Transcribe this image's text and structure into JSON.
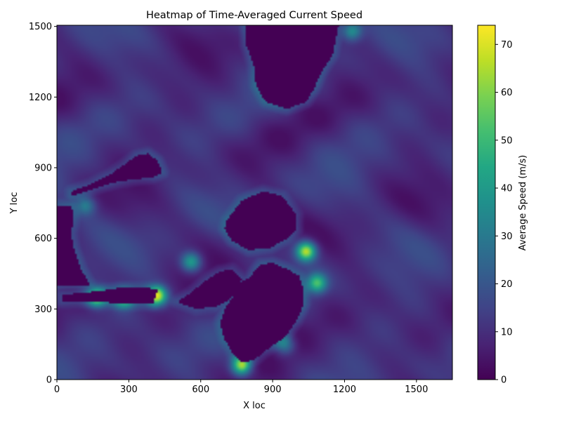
{
  "chart_data": {
    "type": "heatmap",
    "title": "Heatmap of Time-Averaged Current Speed",
    "xlabel": "X loc",
    "ylabel": "Y loc",
    "xlim": [
      0,
      1650
    ],
    "ylim": [
      0,
      1505
    ],
    "x_ticks": [
      0,
      300,
      600,
      900,
      1200,
      1500
    ],
    "y_ticks": [
      0,
      300,
      600,
      900,
      1200,
      1500
    ],
    "colormap": "viridis",
    "colorbar": {
      "label": "Average Speed (m/s)",
      "range": [
        0,
        74
      ],
      "ticks": [
        0,
        10,
        20,
        30,
        40,
        50,
        60,
        70
      ]
    },
    "land_value": 0,
    "background_speed_range": [
      3,
      18
    ],
    "hotspots": [
      {
        "x": 420,
        "y": 355,
        "speed": 72
      },
      {
        "x": 1040,
        "y": 545,
        "speed": 74
      },
      {
        "x": 770,
        "y": 60,
        "speed": 70
      },
      {
        "x": 165,
        "y": 350,
        "speed": 62
      },
      {
        "x": 280,
        "y": 345,
        "speed": 52
      },
      {
        "x": 1085,
        "y": 410,
        "speed": 58
      },
      {
        "x": 560,
        "y": 500,
        "speed": 50
      },
      {
        "x": 1230,
        "y": 1480,
        "speed": 45
      },
      {
        "x": 950,
        "y": 150,
        "speed": 42
      },
      {
        "x": 120,
        "y": 740,
        "speed": 38
      }
    ],
    "land_masses": [
      {
        "name": "north-island",
        "outline": [
          [
            790,
            1505
          ],
          [
            1175,
            1505
          ],
          [
            1150,
            1380
          ],
          [
            1100,
            1300
          ],
          [
            1070,
            1230
          ],
          [
            1040,
            1180
          ],
          [
            960,
            1150
          ],
          [
            870,
            1180
          ],
          [
            830,
            1250
          ],
          [
            820,
            1340
          ],
          [
            790,
            1420
          ]
        ]
      },
      {
        "name": "south-island",
        "outline": [
          [
            800,
            430
          ],
          [
            850,
            490
          ],
          [
            900,
            495
          ],
          [
            960,
            470
          ],
          [
            1010,
            440
          ],
          [
            1030,
            380
          ],
          [
            1030,
            320
          ],
          [
            1000,
            250
          ],
          [
            950,
            180
          ],
          [
            880,
            130
          ],
          [
            830,
            90
          ],
          [
            780,
            70
          ],
          [
            740,
            100
          ],
          [
            700,
            170
          ],
          [
            680,
            240
          ],
          [
            700,
            300
          ],
          [
            740,
            360
          ],
          [
            760,
            410
          ]
        ]
      },
      {
        "name": "central-island",
        "outline": [
          [
            710,
            680
          ],
          [
            770,
            760
          ],
          [
            860,
            800
          ],
          [
            940,
            780
          ],
          [
            1000,
            700
          ],
          [
            1000,
            640
          ],
          [
            960,
            600
          ],
          [
            890,
            560
          ],
          [
            800,
            550
          ],
          [
            730,
            590
          ],
          [
            700,
            640
          ]
        ]
      },
      {
        "name": "west-island",
        "outline": [
          [
            500,
            330
          ],
          [
            560,
            370
          ],
          [
            620,
            420
          ],
          [
            680,
            460
          ],
          [
            730,
            470
          ],
          [
            770,
            430
          ],
          [
            760,
            380
          ],
          [
            720,
            340
          ],
          [
            660,
            310
          ],
          [
            580,
            300
          ]
        ]
      },
      {
        "name": "northwest-coast",
        "outline": [
          [
            60,
            800
          ],
          [
            140,
            830
          ],
          [
            220,
            870
          ],
          [
            290,
            920
          ],
          [
            330,
            950
          ],
          [
            380,
            960
          ],
          [
            420,
            930
          ],
          [
            440,
            880
          ],
          [
            400,
            860
          ],
          [
            320,
            850
          ],
          [
            250,
            840
          ],
          [
            180,
            820
          ],
          [
            120,
            800
          ],
          [
            60,
            780
          ]
        ]
      },
      {
        "name": "west-strip",
        "outline": [
          [
            0,
            740
          ],
          [
            60,
            740
          ],
          [
            70,
            700
          ],
          [
            60,
            620
          ],
          [
            70,
            560
          ],
          [
            100,
            470
          ],
          [
            140,
            400
          ],
          [
            0,
            400
          ]
        ]
      },
      {
        "name": "southwest-strip",
        "outline": [
          [
            20,
            330
          ],
          [
            200,
            330
          ],
          [
            260,
            320
          ],
          [
            400,
            320
          ],
          [
            420,
            380
          ],
          [
            380,
            390
          ],
          [
            260,
            390
          ],
          [
            200,
            380
          ],
          [
            120,
            370
          ],
          [
            20,
            360
          ]
        ]
      }
    ]
  }
}
